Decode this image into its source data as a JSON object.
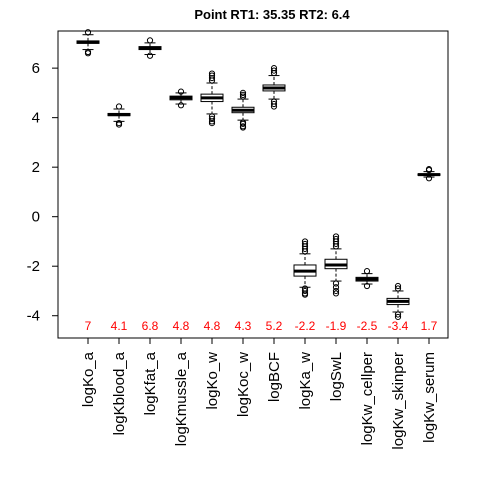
{
  "chart_data": {
    "type": "box",
    "title": "Point  RT1:  35.35   RT2:  6.4",
    "ylim": [
      -4.9,
      7.5
    ],
    "yticks": [
      -4,
      -2,
      0,
      2,
      4,
      6
    ],
    "median_label_color": "#ff0000",
    "box_fill": "#ffffff",
    "line_color": "#000000",
    "categories": [
      "logKo_a",
      "logKblood_a",
      "logKfat_a",
      "logKmussle_a",
      "logKo_w",
      "logKoc_w",
      "logBCF",
      "logKa_w",
      "logSwL",
      "logKw_cellper",
      "logKw_skinper",
      "logKw_serum"
    ],
    "median_labels": [
      "7",
      "4.1",
      "6.8",
      "4.8",
      "4.8",
      "4.3",
      "5.2",
      "-2.2",
      "-1.9",
      "-2.5",
      "-3.4",
      "1.7"
    ],
    "boxes": [
      {
        "q1": 7.0,
        "median": 7.05,
        "q3": 7.1,
        "whisker_low": 6.75,
        "whisker_high": 7.35,
        "outliers_low": [
          6.65,
          6.6
        ],
        "outliers_high": [
          7.45
        ]
      },
      {
        "q1": 4.08,
        "median": 4.12,
        "q3": 4.17,
        "whisker_low": 3.85,
        "whisker_high": 4.35,
        "outliers_low": [
          3.78,
          3.72
        ],
        "outliers_high": [
          4.45
        ]
      },
      {
        "q1": 6.75,
        "median": 6.8,
        "q3": 6.87,
        "whisker_low": 6.55,
        "whisker_high": 7.02,
        "outliers_low": [
          6.5
        ],
        "outliers_high": [
          7.12
        ]
      },
      {
        "q1": 4.72,
        "median": 4.8,
        "q3": 4.87,
        "whisker_low": 4.55,
        "whisker_high": 5.0,
        "outliers_low": [
          4.5
        ],
        "outliers_high": [
          5.05
        ]
      },
      {
        "q1": 4.65,
        "median": 4.8,
        "q3": 4.95,
        "whisker_low": 4.15,
        "whisker_high": 5.4,
        "outliers_low": [
          4.05,
          3.95,
          3.85,
          3.78
        ],
        "outliers_high": [
          5.5,
          5.6,
          5.7,
          5.78
        ]
      },
      {
        "q1": 4.2,
        "median": 4.3,
        "q3": 4.42,
        "whisker_low": 3.9,
        "whisker_high": 4.75,
        "outliers_low": [
          3.8,
          3.75,
          3.65,
          3.6
        ],
        "outliers_high": [
          4.85,
          4.92,
          5.0
        ]
      },
      {
        "q1": 5.08,
        "median": 5.2,
        "q3": 5.32,
        "whisker_low": 4.75,
        "whisker_high": 5.7,
        "outliers_low": [
          4.65,
          4.55,
          4.45
        ],
        "outliers_high": [
          5.8,
          5.9,
          6.0
        ]
      },
      {
        "q1": -2.4,
        "median": -2.2,
        "q3": -1.95,
        "whisker_low": -2.85,
        "whisker_high": -1.5,
        "outliers_low": [
          -2.9,
          -3.0,
          -3.1,
          -3.15
        ],
        "outliers_high": [
          -1.4,
          -1.3,
          -1.2,
          -1.1,
          -1.0
        ]
      },
      {
        "q1": -2.1,
        "median": -1.95,
        "q3": -1.72,
        "whisker_low": -2.6,
        "whisker_high": -1.3,
        "outliers_low": [
          -2.7,
          -2.85,
          -3.0,
          -3.1
        ],
        "outliers_high": [
          -1.2,
          -1.1,
          -1.0,
          -0.9,
          -0.8
        ]
      },
      {
        "q1": -2.6,
        "median": -2.52,
        "q3": -2.45,
        "whisker_low": -2.72,
        "whisker_high": -2.3,
        "outliers_low": [
          -2.8
        ],
        "outliers_high": [
          -2.2
        ]
      },
      {
        "q1": -3.55,
        "median": -3.42,
        "q3": -3.3,
        "whisker_low": -3.85,
        "whisker_high": -3.0,
        "outliers_low": [
          -3.95,
          -4.05
        ],
        "outliers_high": [
          -2.9,
          -2.8
        ]
      },
      {
        "q1": 1.67,
        "median": 1.7,
        "q3": 1.73,
        "whisker_low": 1.6,
        "whisker_high": 1.82,
        "outliers_low": [
          1.55
        ],
        "outliers_high": [
          1.88,
          1.92
        ]
      }
    ]
  }
}
